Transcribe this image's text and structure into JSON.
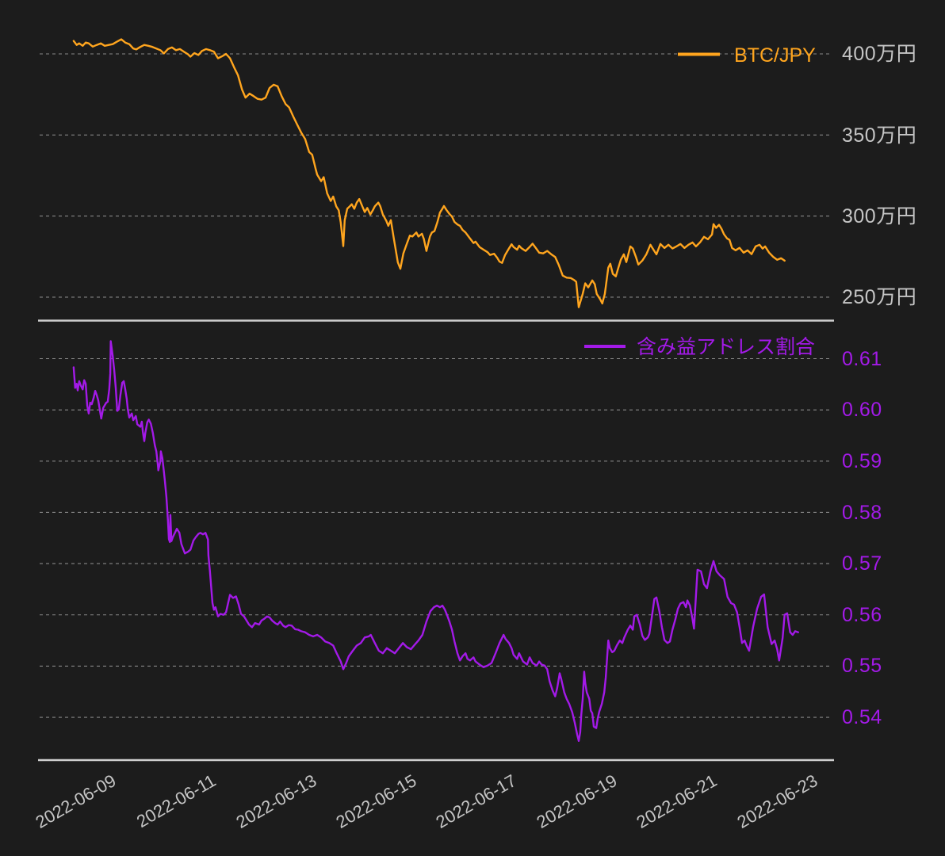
{
  "page": {
    "background": "#1c1c1c"
  },
  "colors": {
    "btc_line": "#ffa51e",
    "ratio_line": "#a31ae8",
    "grid_line": "#9a9a9a",
    "axis_line": "#cfcfcf",
    "tick_label_gray": "#c5c5c5"
  },
  "top_panel": {
    "legend_label": "BTC/JPY",
    "y_unit": "万円",
    "y_ticks": [
      {
        "label": "400万円",
        "value": 400
      },
      {
        "label": "350万円",
        "value": 350
      },
      {
        "label": "300万円",
        "value": 300
      },
      {
        "label": "250万円",
        "value": 250
      }
    ]
  },
  "bottom_panel": {
    "legend_label": "含み益アドレス割合",
    "y_ticks": [
      {
        "label": "0.61",
        "value": 0.61
      },
      {
        "label": "0.60",
        "value": 0.6
      },
      {
        "label": "0.59",
        "value": 0.59
      },
      {
        "label": "0.58",
        "value": 0.58
      },
      {
        "label": "0.57",
        "value": 0.57
      },
      {
        "label": "0.56",
        "value": 0.56
      },
      {
        "label": "0.55",
        "value": 0.55
      },
      {
        "label": "0.54",
        "value": 0.54
      }
    ]
  },
  "x_axis": {
    "tick_labels": [
      "2022-06-09",
      "2022-06-11",
      "2022-06-13",
      "2022-06-15",
      "2022-06-17",
      "2022-06-19",
      "2022-06-21",
      "2022-06-23"
    ],
    "tick_day_values": [
      9,
      11,
      13,
      15,
      17,
      19,
      21,
      23
    ]
  },
  "chart_data": [
    {
      "type": "line",
      "name": "BTC/JPY",
      "panel": "top",
      "color": "#ffa51e",
      "x_unit": "day of 2022-06 (fractional)",
      "y_unit": "万円",
      "xlim": [
        8.05,
        23.87
      ],
      "ylim": [
        235,
        430
      ],
      "legend_position": "top-right",
      "grid": "dashed-horizontal",
      "x": [
        8.73,
        8.79,
        8.84,
        8.91,
        8.97,
        9.03,
        9.11,
        9.19,
        9.27,
        9.35,
        9.43,
        9.51,
        9.59,
        9.68,
        9.76,
        9.84,
        9.92,
        9.98,
        10.06,
        10.14,
        10.22,
        10.3,
        10.38,
        10.46,
        10.53,
        10.61,
        10.69,
        10.77,
        10.85,
        10.93,
        11.01,
        11.06,
        11.14,
        11.22,
        11.29,
        11.37,
        11.45,
        11.53,
        11.61,
        11.69,
        11.77,
        11.85,
        11.93,
        12.01,
        12.09,
        12.16,
        12.24,
        12.32,
        12.4,
        12.48,
        12.56,
        12.64,
        12.72,
        12.8,
        12.88,
        12.96,
        13.03,
        13.11,
        13.19,
        13.27,
        13.35,
        13.43,
        13.49,
        13.56,
        13.59,
        13.67,
        13.72,
        13.79,
        13.86,
        13.91,
        13.97,
        14.02,
        14.06,
        14.11,
        14.14,
        14.19,
        14.24,
        14.28,
        14.33,
        14.38,
        14.43,
        14.49,
        14.54,
        14.59,
        14.65,
        14.7,
        14.74,
        14.81,
        14.85,
        14.9,
        14.97,
        15.01,
        15.06,
        15.12,
        15.2,
        15.25,
        15.31,
        15.38,
        15.44,
        15.49,
        15.57,
        15.61,
        15.68,
        15.72,
        15.77,
        15.84,
        15.88,
        15.93,
        15.99,
        16.04,
        16.09,
        16.12,
        16.17,
        16.23,
        16.28,
        16.33,
        16.39,
        16.44,
        16.49,
        16.55,
        16.63,
        16.71,
        16.75,
        16.83,
        16.91,
        16.99,
        17.04,
        17.12,
        17.18,
        17.23,
        17.28,
        17.34,
        17.42,
        17.47,
        17.51,
        17.58,
        17.62,
        17.67,
        17.75,
        17.83,
        17.89,
        17.96,
        18.02,
        18.1,
        18.18,
        18.26,
        18.34,
        18.41,
        18.49,
        18.57,
        18.65,
        18.72,
        18.76,
        18.81,
        18.86,
        18.89,
        18.94,
        19.0,
        19.08,
        19.13,
        19.17,
        19.24,
        19.28,
        19.33,
        19.4,
        19.44,
        19.49,
        19.55,
        19.6,
        19.65,
        19.71,
        19.76,
        19.84,
        19.89,
        19.95,
        20.0,
        20.08,
        20.16,
        20.24,
        20.28,
        20.36,
        20.44,
        20.52,
        20.6,
        20.68,
        20.76,
        20.84,
        20.92,
        21.0,
        21.08,
        21.15,
        21.23,
        21.31,
        21.39,
        21.47,
        21.5,
        21.55,
        21.61,
        21.66,
        21.71,
        21.77,
        21.82,
        21.87,
        21.94,
        22.02,
        22.1,
        22.18,
        22.26,
        22.34,
        22.42,
        22.48,
        22.53,
        22.61,
        22.69,
        22.77,
        22.85,
        22.92
      ],
      "y": [
        408,
        405.5,
        406.5,
        405,
        407,
        406.5,
        404.5,
        405.5,
        406.5,
        405,
        405.5,
        406,
        407.5,
        409,
        407,
        406,
        403.3,
        402.8,
        404.3,
        405.5,
        405,
        404.3,
        403.3,
        402.3,
        400.3,
        403,
        404,
        402.3,
        403,
        401.3,
        399.8,
        398.3,
        400.5,
        399.3,
        401.8,
        403,
        402.3,
        401.3,
        397.3,
        398.5,
        400,
        397.3,
        391.8,
        386.8,
        378,
        373,
        375.5,
        374,
        372.3,
        371.8,
        373,
        379,
        381,
        380,
        374,
        369,
        367,
        361.5,
        356.5,
        351.5,
        347.5,
        339.5,
        337.8,
        329,
        325.5,
        321.5,
        324,
        314,
        309.3,
        312,
        306,
        303.5,
        296,
        281.5,
        297.5,
        304.5,
        306,
        307.3,
        304.5,
        308.3,
        310.5,
        306,
        302.5,
        305,
        301,
        303.5,
        306,
        308.3,
        306,
        301,
        297,
        294,
        297.5,
        286,
        271.5,
        267.5,
        277,
        283,
        288,
        287.4,
        289.9,
        287.4,
        289.1,
        285.8,
        278.5,
        287.4,
        289.9,
        290.7,
        296.4,
        302.1,
        304.6,
        306.2,
        303.8,
        301.3,
        299.7,
        296.4,
        294.8,
        294,
        291.5,
        289.9,
        286.6,
        283.4,
        284.2,
        280.9,
        279.3,
        277.7,
        276,
        276.8,
        274.4,
        271.9,
        271.1,
        276,
        280.1,
        282.6,
        280.9,
        279.3,
        281.7,
        280.1,
        278.5,
        281,
        283,
        280,
        277.4,
        277,
        278.5,
        276.5,
        274.8,
        270,
        263.3,
        262,
        261.8,
        260.5,
        259.5,
        243.8,
        249,
        252,
        258.5,
        256,
        260.3,
        258,
        252,
        248.6,
        246.1,
        252,
        268.2,
        270.6,
        264.3,
        262.8,
        268,
        273.1,
        276.4,
        271.6,
        281.3,
        280,
        275,
        270.1,
        272.6,
        276.4,
        282.3,
        280.3,
        276.4,
        282.8,
        280.3,
        282.3,
        280,
        281.3,
        282.8,
        280.3,
        282.3,
        283.7,
        281.3,
        283.7,
        287.2,
        285.7,
        288.6,
        295,
        292.7,
        294.6,
        292.2,
        288.7,
        286.2,
        285.3,
        280.3,
        278.9,
        280.4,
        277.4,
        278.9,
        276.5,
        281.3,
        282.3,
        279.9,
        281.3,
        277.4,
        274.9,
        273,
        274,
        272.5
      ]
    },
    {
      "type": "line",
      "name": "含み益アドレス割合",
      "panel": "bottom",
      "color": "#a31ae8",
      "x_unit": "day of 2022-06 (fractional)",
      "y_unit": "ratio",
      "xlim": [
        8.05,
        23.87
      ],
      "ylim": [
        0.531,
        0.617
      ],
      "legend_position": "top-right",
      "grid": "dashed-horizontal",
      "x": [
        8.73,
        8.76,
        8.79,
        8.81,
        8.84,
        8.87,
        8.91,
        8.94,
        8.97,
        9.0,
        9.03,
        9.06,
        9.09,
        9.13,
        9.16,
        9.19,
        9.22,
        9.25,
        9.28,
        9.32,
        9.35,
        9.38,
        9.41,
        9.44,
        9.46,
        9.47,
        9.51,
        9.54,
        9.57,
        9.6,
        9.63,
        9.66,
        9.7,
        9.73,
        9.76,
        9.79,
        9.81,
        9.84,
        9.89,
        9.92,
        9.97,
        10.0,
        10.06,
        10.09,
        10.11,
        10.14,
        10.16,
        10.2,
        10.23,
        10.27,
        10.31,
        10.35,
        10.38,
        10.41,
        10.42,
        10.46,
        10.47,
        10.5,
        10.53,
        10.55,
        10.58,
        10.61,
        10.63,
        10.65,
        10.66,
        10.68,
        10.71,
        10.74,
        10.79,
        10.84,
        10.88,
        10.95,
        11.01,
        11.06,
        11.12,
        11.17,
        11.22,
        11.26,
        11.31,
        11.36,
        11.41,
        11.42,
        11.45,
        11.5,
        11.53,
        11.56,
        11.61,
        11.66,
        11.72,
        11.77,
        11.85,
        11.91,
        11.97,
        12.02,
        12.07,
        12.13,
        12.18,
        12.23,
        12.29,
        12.35,
        12.43,
        12.48,
        12.53,
        12.59,
        12.64,
        12.69,
        12.75,
        12.8,
        12.85,
        12.91,
        12.96,
        13.02,
        13.08,
        13.15,
        13.21,
        13.27,
        13.35,
        13.43,
        13.51,
        13.59,
        13.67,
        13.75,
        13.83,
        13.91,
        13.98,
        14.06,
        14.11,
        14.17,
        14.22,
        14.3,
        14.38,
        14.46,
        14.54,
        14.62,
        14.66,
        14.74,
        14.82,
        14.9,
        14.98,
        15.06,
        15.14,
        15.22,
        15.3,
        15.38,
        15.46,
        15.53,
        15.61,
        15.69,
        15.77,
        15.85,
        15.92,
        15.98,
        16.04,
        16.09,
        16.14,
        16.18,
        16.23,
        16.28,
        16.33,
        16.39,
        16.44,
        16.49,
        16.55,
        16.59,
        16.64,
        16.71,
        16.75,
        16.83,
        16.91,
        16.99,
        17.07,
        17.15,
        17.23,
        17.31,
        17.35,
        17.42,
        17.47,
        17.51,
        17.58,
        17.62,
        17.7,
        17.78,
        17.83,
        17.89,
        17.97,
        18.02,
        18.07,
        18.13,
        18.18,
        18.23,
        18.29,
        18.34,
        18.38,
        18.43,
        18.46,
        18.52,
        18.57,
        18.62,
        18.68,
        18.73,
        18.78,
        18.81,
        18.84,
        18.86,
        18.89,
        18.92,
        18.94,
        18.97,
        19.02,
        19.05,
        19.08,
        19.11,
        19.16,
        19.19,
        19.22,
        19.27,
        19.32,
        19.35,
        19.4,
        19.43,
        19.48,
        19.52,
        19.57,
        19.63,
        19.68,
        19.72,
        19.79,
        19.84,
        19.89,
        19.92,
        19.97,
        20.03,
        20.08,
        20.13,
        20.19,
        20.22,
        20.27,
        20.32,
        20.36,
        20.42,
        20.47,
        20.52,
        20.58,
        20.63,
        20.68,
        20.74,
        20.79,
        20.84,
        20.9,
        20.95,
        20.98,
        21.03,
        21.08,
        21.11,
        21.14,
        21.18,
        21.25,
        21.31,
        21.37,
        21.44,
        21.5,
        21.56,
        21.63,
        21.71,
        21.78,
        21.85,
        21.91,
        21.97,
        22.02,
        22.07,
        22.12,
        22.16,
        22.21,
        22.29,
        22.37,
        22.45,
        22.51,
        22.58,
        22.66,
        22.72,
        22.77,
        22.81,
        22.88,
        22.92,
        22.97,
        23.03,
        23.08,
        23.13,
        23.19
      ],
      "y": [
        0.6083,
        0.6043,
        0.6051,
        0.6038,
        0.6056,
        0.6048,
        0.604,
        0.6058,
        0.6051,
        0.6009,
        0.5993,
        0.6014,
        0.6011,
        0.6024,
        0.6037,
        0.6029,
        0.6019,
        0.6001,
        0.5983,
        0.6004,
        0.6009,
        0.6014,
        0.6016,
        0.604,
        0.6071,
        0.6134,
        0.6105,
        0.6077,
        0.6043,
        0.5998,
        0.6001,
        0.6027,
        0.6053,
        0.6056,
        0.604,
        0.6021,
        0.6001,
        0.5985,
        0.5993,
        0.598,
        0.5988,
        0.5972,
        0.5967,
        0.5977,
        0.5957,
        0.5939,
        0.5955,
        0.5976,
        0.5981,
        0.5973,
        0.5955,
        0.5931,
        0.5919,
        0.5893,
        0.5882,
        0.59,
        0.5919,
        0.5906,
        0.588,
        0.5861,
        0.583,
        0.5785,
        0.5748,
        0.5742,
        0.5795,
        0.5744,
        0.5752,
        0.5758,
        0.5768,
        0.576,
        0.5738,
        0.572,
        0.5723,
        0.5727,
        0.5745,
        0.5752,
        0.5758,
        0.576,
        0.5757,
        0.576,
        0.5747,
        0.5716,
        0.5685,
        0.5623,
        0.561,
        0.5615,
        0.5597,
        0.5602,
        0.56,
        0.5605,
        0.5639,
        0.5633,
        0.5636,
        0.5621,
        0.5602,
        0.5597,
        0.5589,
        0.5581,
        0.5576,
        0.5584,
        0.5581,
        0.5589,
        0.5592,
        0.5597,
        0.5595,
        0.5589,
        0.5584,
        0.5581,
        0.5587,
        0.5579,
        0.5576,
        0.558,
        0.5579,
        0.5572,
        0.5571,
        0.5568,
        0.5566,
        0.5561,
        0.5558,
        0.5561,
        0.5556,
        0.5548,
        0.5545,
        0.554,
        0.5525,
        0.5509,
        0.5494,
        0.5506,
        0.5519,
        0.553,
        0.554,
        0.5545,
        0.5556,
        0.5558,
        0.5561,
        0.5545,
        0.553,
        0.5525,
        0.5535,
        0.553,
        0.5525,
        0.5535,
        0.5545,
        0.5537,
        0.5533,
        0.5541,
        0.555,
        0.5561,
        0.5587,
        0.5607,
        0.5615,
        0.5618,
        0.5615,
        0.5618,
        0.561,
        0.56,
        0.5587,
        0.5571,
        0.5548,
        0.5525,
        0.5511,
        0.5519,
        0.5525,
        0.5514,
        0.5511,
        0.5517,
        0.5509,
        0.5503,
        0.5498,
        0.5501,
        0.5506,
        0.5525,
        0.5545,
        0.5561,
        0.5553,
        0.5545,
        0.5535,
        0.5522,
        0.5514,
        0.5525,
        0.5509,
        0.5503,
        0.5517,
        0.5506,
        0.5501,
        0.5509,
        0.5503,
        0.5501,
        0.5494,
        0.547,
        0.5452,
        0.5441,
        0.5457,
        0.5486,
        0.5475,
        0.5449,
        0.5436,
        0.5426,
        0.541,
        0.539,
        0.5366,
        0.5354,
        0.5371,
        0.5405,
        0.5436,
        0.5489,
        0.5467,
        0.5449,
        0.5436,
        0.5413,
        0.5408,
        0.5382,
        0.5379,
        0.5398,
        0.5411,
        0.5426,
        0.5449,
        0.5478,
        0.555,
        0.5535,
        0.5527,
        0.553,
        0.554,
        0.555,
        0.5545,
        0.5556,
        0.5571,
        0.5579,
        0.5571,
        0.5597,
        0.56,
        0.5581,
        0.5559,
        0.5551,
        0.5556,
        0.5563,
        0.5597,
        0.5631,
        0.5634,
        0.5607,
        0.5576,
        0.5551,
        0.5545,
        0.5548,
        0.5571,
        0.5592,
        0.5612,
        0.5622,
        0.5625,
        0.5615,
        0.5628,
        0.5618,
        0.5592,
        0.5573,
        0.562,
        0.5688,
        0.5685,
        0.566,
        0.5652,
        0.5685,
        0.5705,
        0.5685,
        0.5677,
        0.567,
        0.5635,
        0.5623,
        0.562,
        0.5605,
        0.5576,
        0.5545,
        0.555,
        0.554,
        0.553,
        0.5576,
        0.5612,
        0.5635,
        0.564,
        0.5576,
        0.5543,
        0.555,
        0.5533,
        0.5511,
        0.5555,
        0.56,
        0.5603,
        0.5566,
        0.5561,
        0.5568,
        0.5566
      ]
    }
  ]
}
